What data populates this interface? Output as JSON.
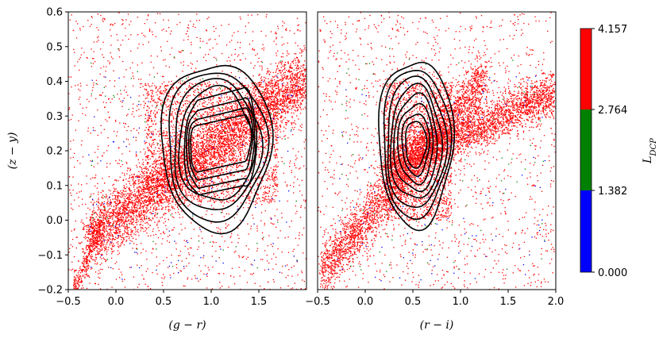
{
  "chart_data": [
    {
      "type": "scatter",
      "panel": "left",
      "xlabel": "(g − r)",
      "ylabel": "(z − y)",
      "xlim": [
        -0.5,
        2.0
      ],
      "ylim": [
        -0.2,
        0.6
      ],
      "xticks": [
        "−0.5",
        "0.0",
        "0.5",
        "1.0",
        "1.5"
      ],
      "yticks": [
        "−0.2",
        "−0.1",
        "0.0",
        "0.1",
        "0.2",
        "0.3",
        "0.4",
        "0.5",
        "0.6"
      ],
      "scatter_color": "#ff0000",
      "contour_color": "#000000",
      "contour_peaks": [
        {
          "x": 0.85,
          "y": 0.21
        },
        {
          "x": 1.35,
          "y": 0.24
        }
      ]
    },
    {
      "type": "scatter",
      "panel": "right",
      "xlabel": "(r − i)",
      "ylabel": "",
      "xlim": [
        -0.5,
        2.0
      ],
      "ylim": [
        -0.2,
        0.6
      ],
      "xticks": [
        "−0.5",
        "0.0",
        "0.5",
        "1.0",
        "1.5",
        "2.0"
      ],
      "scatter_color": "#ff0000",
      "contour_color": "#000000",
      "contour_peaks": [
        {
          "x": 0.53,
          "y": 0.22
        }
      ]
    }
  ],
  "colorbar": {
    "label": "L_DCP",
    "label_main": "L",
    "label_sub": "DCP",
    "ticks": [
      "4.157",
      "2.764",
      "1.382",
      "0.000"
    ],
    "colors": [
      "#ff0000",
      "#008000",
      "#0000ff"
    ]
  }
}
